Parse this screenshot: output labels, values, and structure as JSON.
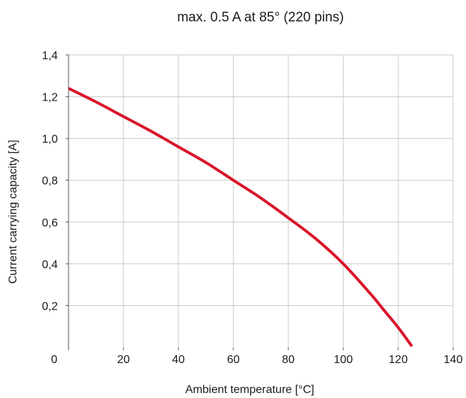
{
  "chart_data": {
    "type": "line",
    "title": "max. 0.5 A  at 85° (220 pins)",
    "xlabel": "Ambient temperature [°C]",
    "ylabel": "Current carrying capacity [A]",
    "xlim": [
      0,
      140
    ],
    "ylim": [
      0,
      1.4
    ],
    "x_ticks": [
      20,
      40,
      60,
      80,
      100,
      120,
      140
    ],
    "x_tick_labels": [
      "20",
      "40",
      "60",
      "80",
      "100",
      "120",
      "140"
    ],
    "y_ticks": [
      0.2,
      0.4,
      0.6,
      0.8,
      1.0,
      1.2,
      1.4
    ],
    "y_tick_labels": [
      "0,2",
      "0,4",
      "0,6",
      "0,8",
      "1,0",
      "1,2",
      "1,4"
    ],
    "origin_label": "0",
    "grid": true,
    "series": [
      {
        "color": "#d9152a",
        "x": [
          0,
          10,
          20,
          30,
          40,
          50,
          60,
          70,
          80,
          90,
          100,
          110,
          115,
          120,
          125
        ],
        "y": [
          1.24,
          1.175,
          1.105,
          1.035,
          0.96,
          0.885,
          0.8,
          0.715,
          0.62,
          0.52,
          0.4,
          0.255,
          0.175,
          0.095,
          0.005
        ]
      }
    ]
  }
}
